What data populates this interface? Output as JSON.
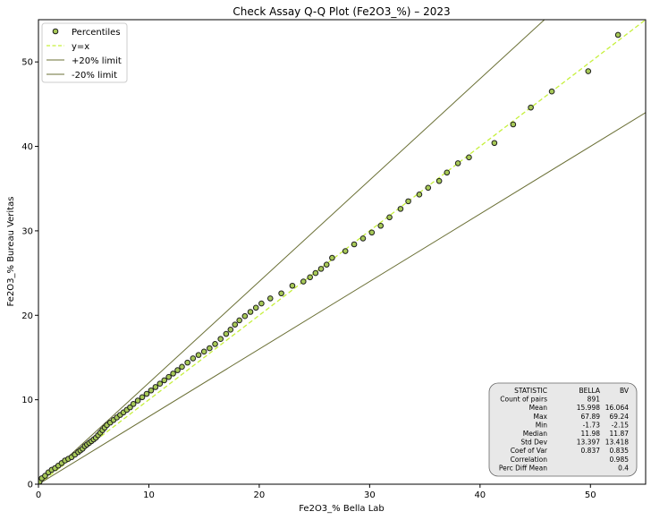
{
  "chart_data": {
    "type": "scatter",
    "title": "Check Assay Q-Q Plot (Fe2O3_%) – 2023",
    "xlabel": "Fe2O3_% Bella Lab",
    "ylabel": "Fe2O3_% Bureau Veritas",
    "xlim": [
      0,
      55
    ],
    "ylim": [
      0,
      55
    ],
    "xticks": [
      0,
      10,
      20,
      30,
      40,
      50
    ],
    "yticks": [
      0,
      10,
      20,
      30,
      40,
      50
    ],
    "grid": false,
    "legend_position": "top-left",
    "legend": [
      {
        "label": "Percentiles",
        "kind": "marker",
        "color": "#a7c957"
      },
      {
        "label": "y=x",
        "kind": "dashed",
        "color": "#c6f03c"
      },
      {
        "label": "+20% limit",
        "kind": "solid",
        "color": "#6b7036"
      },
      {
        "label": "-20% limit",
        "kind": "solid",
        "color": "#6b7036"
      }
    ],
    "lines": [
      {
        "name": "y=x",
        "slope": 1.0,
        "color": "#c6f03c",
        "dash": true
      },
      {
        "name": "+20% limit",
        "slope": 1.2,
        "color": "#6b7036",
        "dash": false
      },
      {
        "name": "-20% limit",
        "slope": 0.8,
        "color": "#6b7036",
        "dash": false
      }
    ],
    "marker": {
      "fill": "#a7c957",
      "edge": "#1f1f1f"
    },
    "series": [
      {
        "name": "Percentiles",
        "x": [
          0.1,
          0.3,
          0.6,
          0.9,
          1.2,
          1.5,
          1.8,
          2.1,
          2.4,
          2.7,
          3.0,
          3.3,
          3.6,
          3.8,
          4.0,
          4.2,
          4.4,
          4.6,
          4.8,
          5.0,
          5.2,
          5.4,
          5.6,
          5.8,
          6.0,
          6.2,
          6.5,
          6.8,
          7.1,
          7.4,
          7.7,
          8.0,
          8.3,
          8.6,
          9.0,
          9.4,
          9.8,
          10.2,
          10.6,
          11.0,
          11.4,
          11.8,
          12.2,
          12.6,
          13.0,
          13.5,
          14.0,
          14.5,
          15.0,
          15.5,
          16.0,
          16.5,
          17.0,
          17.4,
          17.8,
          18.2,
          18.7,
          19.2,
          19.7,
          20.2,
          21.0,
          22.0,
          23.0,
          24.0,
          24.6,
          25.1,
          25.6,
          26.1,
          26.6,
          27.8,
          28.6,
          29.4,
          30.2,
          31.0,
          31.8,
          32.8,
          33.5,
          34.5,
          35.3,
          36.3,
          37.0,
          38.0,
          39.0,
          41.3,
          43.0,
          44.6,
          46.5,
          49.8,
          52.5
        ],
        "y": [
          0.3,
          0.7,
          1.0,
          1.4,
          1.7,
          1.9,
          2.2,
          2.5,
          2.8,
          3.0,
          3.2,
          3.5,
          3.8,
          4.0,
          4.2,
          4.5,
          4.7,
          4.9,
          5.1,
          5.3,
          5.5,
          5.8,
          6.1,
          6.4,
          6.7,
          7.0,
          7.3,
          7.6,
          7.9,
          8.2,
          8.5,
          8.8,
          9.1,
          9.5,
          9.9,
          10.3,
          10.7,
          11.1,
          11.5,
          11.9,
          12.3,
          12.7,
          13.1,
          13.5,
          13.9,
          14.4,
          14.9,
          15.3,
          15.7,
          16.1,
          16.6,
          17.2,
          17.8,
          18.3,
          18.9,
          19.4,
          19.9,
          20.4,
          20.9,
          21.4,
          22.0,
          22.6,
          23.5,
          24.0,
          24.5,
          25.0,
          25.5,
          26.0,
          26.8,
          27.6,
          28.4,
          29.1,
          29.8,
          30.6,
          31.6,
          32.6,
          33.5,
          34.3,
          35.1,
          35.9,
          36.9,
          38.0,
          38.7,
          40.4,
          42.6,
          44.6,
          46.5,
          48.9,
          53.2
        ]
      }
    ],
    "stats": {
      "headers": [
        "STATISTIC",
        "BELLA",
        "BV"
      ],
      "rows": [
        [
          "Count of pairs",
          "891",
          ""
        ],
        [
          "Mean",
          "15.998",
          "16.064"
        ],
        [
          "Max",
          "67.89",
          "69.24"
        ],
        [
          "Min",
          "-1.73",
          "-2.15"
        ],
        [
          "Median",
          "11.98",
          "11.87"
        ],
        [
          "Std Dev",
          "13.397",
          "13.418"
        ],
        [
          "Coef of Var",
          "0.837",
          "0.835"
        ],
        [
          "Correlation",
          "",
          "0.985"
        ],
        [
          "Perc Diff Mean",
          "",
          "0.4"
        ]
      ]
    }
  }
}
